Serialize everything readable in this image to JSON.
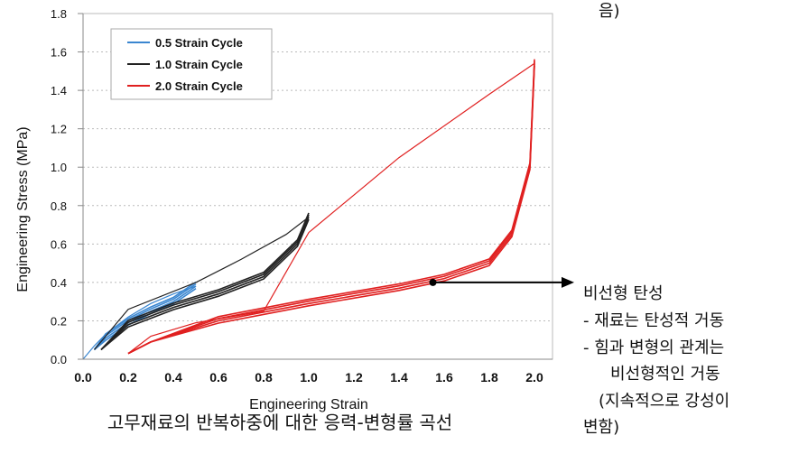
{
  "chart_data": {
    "type": "line",
    "title": "",
    "xlabel": "Engineering Strain",
    "ylabel": "Engineering Stress (MPa)",
    "xlim": [
      0.0,
      2.0
    ],
    "ylim": [
      0.0,
      1.8
    ],
    "x_ticks": [
      "0.0",
      "0.2",
      "0.4",
      "0.6",
      "0.8",
      "1.0",
      "1.2",
      "1.4",
      "1.6",
      "1.8",
      "2.0"
    ],
    "y_ticks": [
      "0.0",
      "0.2",
      "0.4",
      "0.6",
      "0.8",
      "1.0",
      "1.2",
      "1.4",
      "1.6",
      "1.8"
    ],
    "grid": "horizontal dotted",
    "legend_position": "top-left",
    "series": [
      {
        "name": "0.5 Strain Cycle",
        "color": "#3a86d0",
        "loading": [
          [
            0.0,
            0.0
          ],
          [
            0.05,
            0.07
          ],
          [
            0.1,
            0.13
          ],
          [
            0.2,
            0.22
          ],
          [
            0.3,
            0.29
          ],
          [
            0.4,
            0.34
          ],
          [
            0.5,
            0.38
          ]
        ],
        "unloading": [
          [
            0.5,
            0.38
          ],
          [
            0.4,
            0.3
          ],
          [
            0.3,
            0.25
          ],
          [
            0.2,
            0.19
          ],
          [
            0.1,
            0.11
          ],
          [
            0.05,
            0.05
          ]
        ]
      },
      {
        "name": "1.0 Strain Cycle",
        "color": "#222222",
        "loading": [
          [
            0.05,
            0.05
          ],
          [
            0.2,
            0.26
          ],
          [
            0.5,
            0.4
          ],
          [
            0.7,
            0.52
          ],
          [
            0.9,
            0.65
          ],
          [
            1.0,
            0.74
          ]
        ],
        "unloading": [
          [
            1.0,
            0.74
          ],
          [
            0.95,
            0.6
          ],
          [
            0.8,
            0.43
          ],
          [
            0.6,
            0.34
          ],
          [
            0.4,
            0.27
          ],
          [
            0.2,
            0.18
          ],
          [
            0.08,
            0.05
          ]
        ]
      },
      {
        "name": "2.0 Strain Cycle",
        "color": "#e02020",
        "loading": [
          [
            0.2,
            0.03
          ],
          [
            0.3,
            0.12
          ],
          [
            0.5,
            0.19
          ],
          [
            0.8,
            0.25
          ],
          [
            1.0,
            0.66
          ],
          [
            1.4,
            1.05
          ],
          [
            1.8,
            1.38
          ],
          [
            2.0,
            1.54
          ]
        ],
        "unloading": [
          [
            2.0,
            1.54
          ],
          [
            1.98,
            1.0
          ],
          [
            1.9,
            0.65
          ],
          [
            1.8,
            0.5
          ],
          [
            1.6,
            0.42
          ],
          [
            1.4,
            0.37
          ],
          [
            1.0,
            0.29
          ],
          [
            0.6,
            0.2
          ],
          [
            0.3,
            0.09
          ],
          [
            0.2,
            0.03
          ]
        ]
      }
    ],
    "annotation_point": [
      1.55,
      0.4
    ]
  },
  "annotation": {
    "top_fragment": "음)",
    "lines": [
      "비선형 탄성",
      "- 재료는 탄성적 거동",
      "- 힘과 변형의 관계는",
      "비선형적인 거동",
      "(지속적으로 강성이",
      "변함)"
    ]
  },
  "caption": "고무재료의 반복하중에 대한 응력-변형률 곡선"
}
